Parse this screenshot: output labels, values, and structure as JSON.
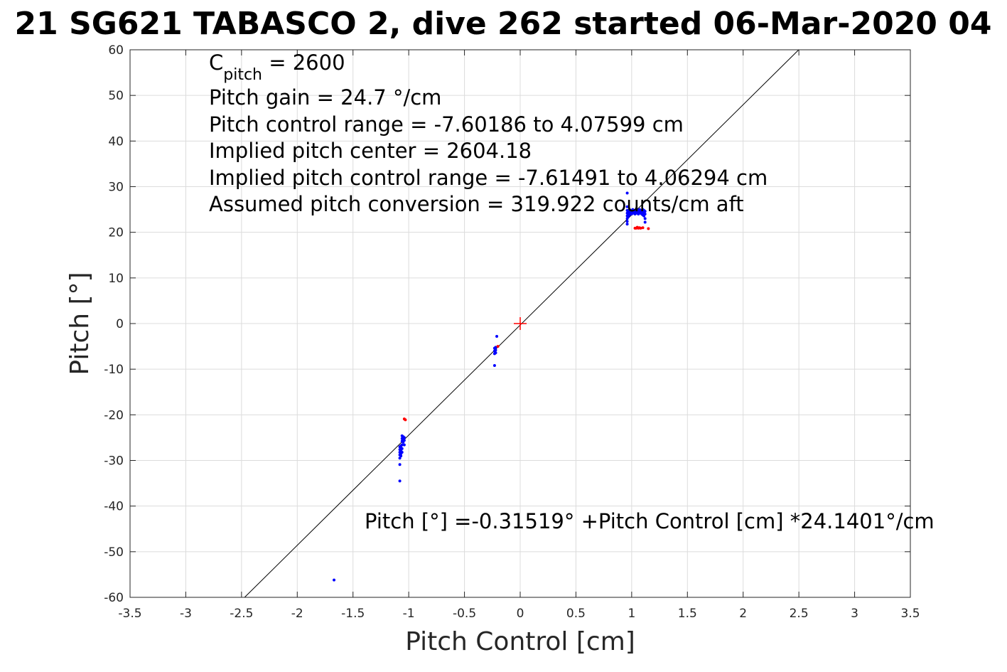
{
  "chart_data": {
    "type": "scatter",
    "title": "21 SG621 TABASCO 2, dive 262 started 06-Mar-2020 04",
    "xlabel": "Pitch Control [cm]",
    "ylabel": "Pitch [°]",
    "xlim": [
      -3.5,
      3.5
    ],
    "ylim": [
      -60,
      60
    ],
    "xticks": [
      -3.5,
      -3,
      -2.5,
      -2,
      -1.5,
      -1,
      -0.5,
      0,
      0.5,
      1,
      1.5,
      2,
      2.5,
      3,
      3.5
    ],
    "xtick_labels": [
      "-3.5",
      "-3",
      "-2.5",
      "-2",
      "-1.5",
      "-1",
      "-0.5",
      "0",
      "0.5",
      "1",
      "1.5",
      "2",
      "2.5",
      "3",
      "3.5"
    ],
    "yticks": [
      -60,
      -50,
      -40,
      -30,
      -20,
      -10,
      0,
      10,
      20,
      30,
      40,
      50,
      60
    ],
    "ytick_labels": [
      "-60",
      "-50",
      "-40",
      "-30",
      "-20",
      "-10",
      "0",
      "10",
      "20",
      "30",
      "40",
      "50",
      "60"
    ],
    "grid": true,
    "fit_line": {
      "intercept": -0.31519,
      "slope": 24.1401,
      "color": "#000000"
    },
    "center_marker": {
      "x": 0,
      "y": 0,
      "color": "#ff0000"
    },
    "series": [
      {
        "color": "#0000ff",
        "points": [
          [
            -1.67,
            -56.2
          ],
          [
            -1.08,
            -34.5
          ],
          [
            -1.08,
            -30.9
          ],
          [
            -1.08,
            -29.5
          ],
          [
            -1.08,
            -28.8
          ],
          [
            -1.08,
            -28.2
          ],
          [
            -1.08,
            -27.6
          ],
          [
            -1.08,
            -27.0
          ],
          [
            -1.07,
            -29.0
          ],
          [
            -1.07,
            -28.5
          ],
          [
            -1.07,
            -27.8
          ],
          [
            -1.07,
            -27.2
          ],
          [
            -1.07,
            -26.8
          ],
          [
            -1.06,
            -28.2
          ],
          [
            -1.06,
            -27.4
          ],
          [
            -1.06,
            -26.6
          ],
          [
            -1.06,
            -25.8
          ],
          [
            -1.06,
            -25.2
          ],
          [
            -1.06,
            -24.6
          ],
          [
            -1.05,
            -26.0
          ],
          [
            -1.05,
            -25.4
          ],
          [
            -1.05,
            -24.8
          ],
          [
            -1.04,
            -26.6
          ],
          [
            -1.04,
            -25.6
          ],
          [
            -1.04,
            -25.0
          ],
          [
            -0.23,
            -9.2
          ],
          [
            -0.23,
            -6.6
          ],
          [
            -0.23,
            -6.0
          ],
          [
            -0.23,
            -5.4
          ],
          [
            -0.22,
            -6.4
          ],
          [
            -0.22,
            -5.8
          ],
          [
            -0.22,
            -5.2
          ],
          [
            -0.21,
            -2.8
          ],
          [
            0.96,
            28.6
          ],
          [
            0.96,
            25.6
          ],
          [
            0.96,
            24.8
          ],
          [
            0.96,
            24.2
          ],
          [
            0.96,
            23.6
          ],
          [
            0.96,
            23.0
          ],
          [
            0.96,
            22.4
          ],
          [
            0.96,
            21.8
          ],
          [
            0.97,
            24.6
          ],
          [
            0.97,
            24.0
          ],
          [
            0.97,
            23.4
          ],
          [
            0.98,
            25.0
          ],
          [
            0.98,
            24.4
          ],
          [
            0.98,
            23.8
          ],
          [
            0.99,
            24.8
          ],
          [
            0.99,
            24.2
          ],
          [
            1.0,
            24.6
          ],
          [
            1.0,
            24.0
          ],
          [
            1.01,
            25.0
          ],
          [
            1.01,
            24.4
          ],
          [
            1.02,
            24.8
          ],
          [
            1.02,
            24.2
          ],
          [
            1.03,
            24.6
          ],
          [
            1.03,
            24.0
          ],
          [
            1.04,
            25.0
          ],
          [
            1.04,
            24.4
          ],
          [
            1.05,
            24.8
          ],
          [
            1.05,
            24.2
          ],
          [
            1.06,
            24.6
          ],
          [
            1.06,
            24.0
          ],
          [
            1.07,
            25.0
          ],
          [
            1.07,
            24.4
          ],
          [
            1.08,
            24.8
          ],
          [
            1.08,
            24.2
          ],
          [
            1.09,
            24.6
          ],
          [
            1.09,
            24.0
          ],
          [
            1.1,
            25.0
          ],
          [
            1.1,
            24.4
          ],
          [
            1.1,
            23.8
          ],
          [
            1.11,
            24.8
          ],
          [
            1.11,
            24.2
          ],
          [
            1.11,
            23.6
          ],
          [
            1.12,
            24.6
          ],
          [
            1.12,
            24.0
          ],
          [
            1.12,
            23.0
          ],
          [
            1.12,
            22.2
          ]
        ]
      },
      {
        "color": "#ff0000",
        "points": [
          [
            -1.04,
            -20.9
          ],
          [
            -1.03,
            -21.1
          ],
          [
            -0.2,
            -5.0
          ],
          [
            1.03,
            20.9
          ],
          [
            1.04,
            20.9
          ],
          [
            1.05,
            21.1
          ],
          [
            1.06,
            20.9
          ],
          [
            1.07,
            21.0
          ],
          [
            1.08,
            20.9
          ],
          [
            1.1,
            21.0
          ],
          [
            1.15,
            20.8
          ]
        ]
      }
    ],
    "annotations": {
      "cpitch_base": "C",
      "cpitch_sub": "pitch",
      "cpitch_value": " = 2600",
      "pitch_gain": "Pitch gain = 24.7 °/cm",
      "pitch_control_range": "Pitch control range = -7.60186 to 4.07599 cm",
      "implied_center": "Implied pitch center = 2604.18",
      "implied_range": "Implied pitch control range = -7.61491 to 4.06294 cm",
      "assumed_conversion": "Assumed pitch conversion = 319.922 counts/cm aft",
      "fit_equation": "Pitch [°] =-0.31519° +Pitch Control [cm] *24.1401°/cm"
    }
  }
}
